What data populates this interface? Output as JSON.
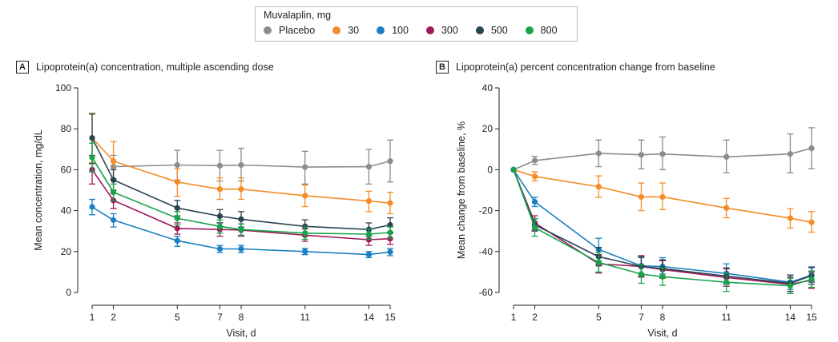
{
  "legend": {
    "title": "Muvalaplin, mg",
    "items": [
      {
        "label": "Placebo",
        "color": "#8c8c8c"
      },
      {
        "label": "30",
        "color": "#f28c28"
      },
      {
        "label": "100",
        "color": "#1b7fc3"
      },
      {
        "label": "300",
        "color": "#a0195b"
      },
      {
        "label": "500",
        "color": "#2a4350"
      },
      {
        "label": "800",
        "color": "#17a34a"
      }
    ]
  },
  "chart_data": [
    {
      "panel_letter": "A",
      "title": "Lipoprotein(a) concentration, multiple ascending dose",
      "type": "line",
      "xlabel": "Visit, d",
      "ylabel": "Mean concentration, mg/dL",
      "xlim": [
        1,
        15
      ],
      "ylim": [
        0,
        100
      ],
      "xticks": [
        1,
        2,
        5,
        7,
        8,
        11,
        14,
        15
      ],
      "yticks": [
        0,
        20,
        40,
        60,
        80,
        100
      ],
      "grid": false,
      "series": [
        {
          "name": "Placebo",
          "color": "#8c8c8c",
          "x": [
            2,
            5,
            7,
            8,
            11,
            14,
            15
          ],
          "y": [
            61.5,
            62.3,
            62,
            62.3,
            61.3,
            61.5,
            64.2
          ],
          "err_low": [
            55.5,
            55,
            54.5,
            54.5,
            53,
            53,
            54
          ],
          "err_high": [
            67,
            69.5,
            69.5,
            70.5,
            69,
            70,
            74.5
          ]
        },
        {
          "name": "30",
          "color": "#f28c28",
          "x": [
            1,
            2,
            5,
            7,
            8,
            11,
            14,
            15
          ],
          "y": [
            75.5,
            64.2,
            54,
            50.5,
            50.5,
            47.3,
            44.7,
            43.7
          ],
          "err_low": [
            63.5,
            55,
            47,
            45.5,
            45.5,
            42,
            39.5,
            38.5
          ],
          "err_high": [
            87,
            73.8,
            60.5,
            56,
            56,
            52.5,
            49.5,
            49
          ]
        },
        {
          "name": "100",
          "color": "#1b7fc3",
          "x": [
            1,
            2,
            5,
            7,
            8,
            11,
            14,
            15
          ],
          "y": [
            41.8,
            35.4,
            25.3,
            21.3,
            21.3,
            20,
            18.5,
            19.8
          ],
          "err_low": [
            38,
            32,
            22.5,
            19.5,
            19.5,
            18.5,
            17,
            18
          ],
          "err_high": [
            45.5,
            38.5,
            27.5,
            23,
            23,
            21.5,
            20,
            21.5
          ]
        },
        {
          "name": "300",
          "color": "#a0195b",
          "x": [
            1,
            2,
            5,
            7,
            8,
            11,
            14,
            15
          ],
          "y": [
            60,
            45,
            31.3,
            30.8,
            30.5,
            28,
            25.8,
            26.3
          ],
          "err_low": [
            53,
            41,
            28.5,
            27.5,
            27.5,
            25,
            23,
            23.5
          ],
          "err_high": [
            67,
            48.5,
            34,
            34,
            33.5,
            31,
            28.5,
            29
          ]
        },
        {
          "name": "500",
          "color": "#2a4350",
          "x": [
            1,
            2,
            5,
            7,
            8,
            11,
            14,
            15
          ],
          "y": [
            75.5,
            55,
            41.3,
            37.3,
            35.8,
            32.3,
            30.8,
            33
          ],
          "err_low": [
            63,
            50,
            37.5,
            34,
            32,
            29,
            27.5,
            29.5
          ],
          "err_high": [
            87.5,
            60,
            45,
            40.5,
            39.5,
            35.5,
            34,
            36.5
          ]
        },
        {
          "name": "800",
          "color": "#17a34a",
          "x": [
            1,
            2,
            5,
            7,
            8,
            11,
            14,
            15
          ],
          "y": [
            66,
            49,
            36.3,
            32.3,
            30.8,
            29,
            28.5,
            29.3
          ],
          "err_low": [
            59,
            45,
            33,
            29,
            28,
            26,
            26,
            26.5
          ],
          "err_high": [
            73,
            53,
            39.5,
            35.5,
            33.5,
            32,
            31,
            32
          ]
        }
      ]
    },
    {
      "panel_letter": "B",
      "title": "Lipoprotein(a) percent concentration change from baseline",
      "type": "line",
      "xlabel": "Visit, d",
      "ylabel": "Mean change from baseline, %",
      "xlim": [
        1,
        15
      ],
      "ylim": [
        -60,
        40
      ],
      "xticks": [
        1,
        2,
        5,
        7,
        8,
        11,
        14,
        15
      ],
      "yticks": [
        -60,
        -40,
        -20,
        0,
        20,
        40
      ],
      "grid": false,
      "series": [
        {
          "name": "Placebo",
          "color": "#8c8c8c",
          "x": [
            1,
            2,
            5,
            7,
            8,
            11,
            14,
            15
          ],
          "y": [
            0,
            4.5,
            8,
            7.3,
            7.7,
            6.3,
            7.7,
            10.5
          ],
          "err_low": [
            0,
            2.5,
            1.5,
            0.5,
            0,
            -1.5,
            -1.5,
            0.5
          ],
          "err_high": [
            0,
            6.5,
            14.5,
            14.5,
            16,
            14.5,
            17.5,
            20.5
          ]
        },
        {
          "name": "30",
          "color": "#f28c28",
          "x": [
            1,
            2,
            5,
            7,
            8,
            11,
            14,
            15
          ],
          "y": [
            0,
            -3.3,
            -8.3,
            -13.3,
            -13.3,
            -18.7,
            -23.7,
            -25.7
          ],
          "err_low": [
            0,
            -5.5,
            -13.5,
            -20,
            -19.5,
            -23.5,
            -28.5,
            -30.5
          ],
          "err_high": [
            0,
            -1,
            -3,
            -6.5,
            -6.5,
            -14,
            -19,
            -20.5
          ]
        },
        {
          "name": "100",
          "color": "#1b7fc3",
          "x": [
            1,
            2,
            5,
            7,
            8,
            11,
            14,
            15
          ],
          "y": [
            0,
            -15.7,
            -39,
            -47,
            -47.3,
            -50.7,
            -55,
            -51.5
          ],
          "err_low": [
            0,
            -18,
            -44.5,
            -51,
            -51,
            -55.5,
            -58.5,
            -55
          ],
          "err_high": [
            0,
            -13.5,
            -33.5,
            -43,
            -43,
            -46,
            -51.5,
            -48
          ]
        },
        {
          "name": "300",
          "color": "#a0195b",
          "x": [
            1,
            2,
            5,
            7,
            8,
            11,
            14,
            15
          ],
          "y": [
            0,
            -26,
            -46,
            -47.3,
            -48.8,
            -52.7,
            -56,
            -54
          ],
          "err_low": [
            0,
            -29.5,
            -50.5,
            -52.5,
            -53,
            -57,
            -59.5,
            -58
          ],
          "err_high": [
            0,
            -22.5,
            -41.5,
            -42,
            -44.5,
            -48.5,
            -52.5,
            -50
          ]
        },
        {
          "name": "500",
          "color": "#2a4350",
          "x": [
            1,
            2,
            5,
            7,
            8,
            11,
            14,
            15
          ],
          "y": [
            0,
            -27,
            -42.5,
            -47.3,
            -48.3,
            -52,
            -55.5,
            -51.8
          ],
          "err_low": [
            0,
            -30,
            -47,
            -52,
            -52.5,
            -56,
            -59.5,
            -56
          ],
          "err_high": [
            0,
            -24,
            -38,
            -42.5,
            -44,
            -48,
            -51.5,
            -47.5
          ]
        },
        {
          "name": "800",
          "color": "#17a34a",
          "x": [
            1,
            2,
            5,
            7,
            8,
            11,
            14,
            15
          ],
          "y": [
            0,
            -28.3,
            -45.3,
            -51,
            -52.3,
            -55,
            -56.7,
            -53.5
          ],
          "err_low": [
            0,
            -32.5,
            -50,
            -55.5,
            -56.5,
            -59.5,
            -60.5,
            -57.5
          ],
          "err_high": [
            0,
            -24,
            -40.5,
            -46.5,
            -48,
            -50.5,
            -53,
            -49.5
          ]
        }
      ]
    }
  ]
}
